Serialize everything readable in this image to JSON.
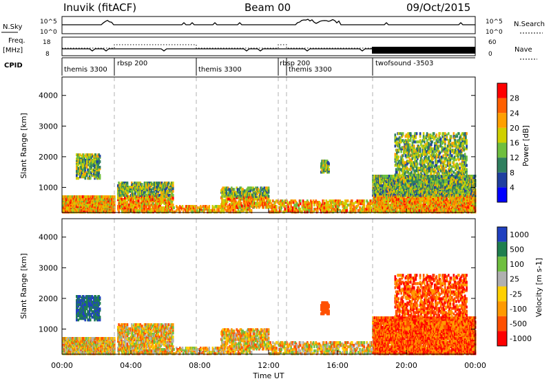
{
  "header": {
    "station": "Inuvik (fitACF)",
    "beam": "Beam 00",
    "date": "09/Oct/2015"
  },
  "left_labels": {
    "nsky": "N.Sky",
    "freq_top": "Freq.",
    "freq_unit": "[MHz]",
    "cpid": "CPID",
    "nsky_hi": "10^5",
    "nsky_lo": "10^0",
    "freq_hi": "18",
    "freq_lo": "8"
  },
  "right_labels": {
    "nsearch": "N.Search",
    "nave": "Nave",
    "nsearch_hi": "10^5",
    "nsearch_lo": "10^0",
    "nave_hi": "60",
    "nave_lo": "0"
  },
  "colors": {
    "power_scale": [
      "#0000ff",
      "#1f3fa0",
      "#2f7f5f",
      "#6fbf3f",
      "#d0d000",
      "#ffa000",
      "#ff6000",
      "#ff0000"
    ],
    "velocity_scale": [
      "#2040c0",
      "#1f7f4f",
      "#6fbf3f",
      "#b0b0b0",
      "#ffd000",
      "#ff9a00",
      "#ff5000",
      "#ff0000"
    ],
    "guide_line": "#b0b0b0"
  },
  "chart_data": [
    {
      "type": "line",
      "name": "N.Sky / N.Search time series",
      "x_range": [
        "00:00",
        "00:00"
      ],
      "ylabel_left": "N.Sky",
      "ylabel_right": "N.Search",
      "ylim": [
        "10^0",
        "10^5"
      ]
    },
    {
      "type": "line",
      "name": "Frequency / Nave time series",
      "ylabel_left": "Freq. [MHz]",
      "ylabel_right": "Nave",
      "ylim_left": [
        8,
        18
      ],
      "ylim_right": [
        0,
        60
      ]
    },
    {
      "type": "table",
      "name": "CPID segments",
      "segments": [
        {
          "label": "themis 3300",
          "start": "00:00",
          "end": "03:00"
        },
        {
          "label": "rbsp 200",
          "start": "03:00",
          "end": "07:40"
        },
        {
          "label": "themis 3300",
          "start": "07:40",
          "end": "12:30"
        },
        {
          "label": "rbsp 200",
          "start": "12:30",
          "end": "13:00"
        },
        {
          "label": "themis 3300",
          "start": "13:00",
          "end": "18:00"
        },
        {
          "label": "twofsound -3503",
          "start": "18:00",
          "end": "24:00"
        }
      ]
    },
    {
      "type": "heatmap",
      "name": "Power",
      "ylabel": "Slant Range [km]",
      "yticks": [
        1000,
        2000,
        3000,
        4000
      ],
      "ylim": [
        180,
        4600
      ],
      "colorbar_label": "Power [dB]",
      "colorbar_ticks": [
        4,
        8,
        12,
        16,
        20,
        24,
        28
      ]
    },
    {
      "type": "heatmap",
      "name": "Velocity",
      "ylabel": "Slant Range [km]",
      "xlabel": "Time UT",
      "xticks": [
        "00:00",
        "04:00",
        "08:00",
        "12:00",
        "16:00",
        "20:00",
        "00:00"
      ],
      "yticks": [
        1000,
        2000,
        3000,
        4000
      ],
      "ylim": [
        180,
        4600
      ],
      "colorbar_label": "Velocity [m s-1]",
      "colorbar_ticks": [
        1000,
        500,
        100,
        25,
        -25,
        -100,
        -500,
        -1000
      ]
    }
  ]
}
